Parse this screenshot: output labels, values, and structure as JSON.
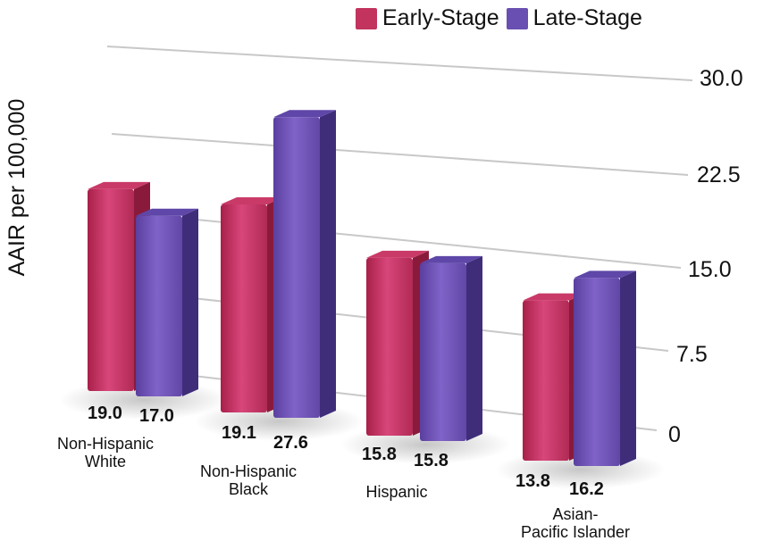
{
  "chart_data": {
    "type": "bar",
    "title": "",
    "xlabel": "",
    "ylabel": "AAIR per 100,000",
    "ylim": [
      0,
      30
    ],
    "yticks": [
      "30.0",
      "22.5",
      "15.0",
      "7.5",
      "0"
    ],
    "categories": [
      "Non-Hispanic\nWhite",
      "Non-Hispanic\nBlack",
      "Hispanic",
      "Asian-\nPacific Islander"
    ],
    "series": [
      {
        "name": "Early-Stage",
        "color": "#c2335e",
        "values": [
          19.0,
          19.1,
          15.8,
          13.8
        ],
        "labels": [
          "19.0",
          "19.1",
          "15.8",
          "13.8"
        ]
      },
      {
        "name": "Late-Stage",
        "color": "#6a4fb2",
        "values": [
          17.0,
          27.6,
          15.8,
          16.2
        ],
        "labels": [
          "17.0",
          "27.6",
          "15.8",
          "16.2"
        ]
      }
    ],
    "legend": "top-right",
    "grid": true
  }
}
